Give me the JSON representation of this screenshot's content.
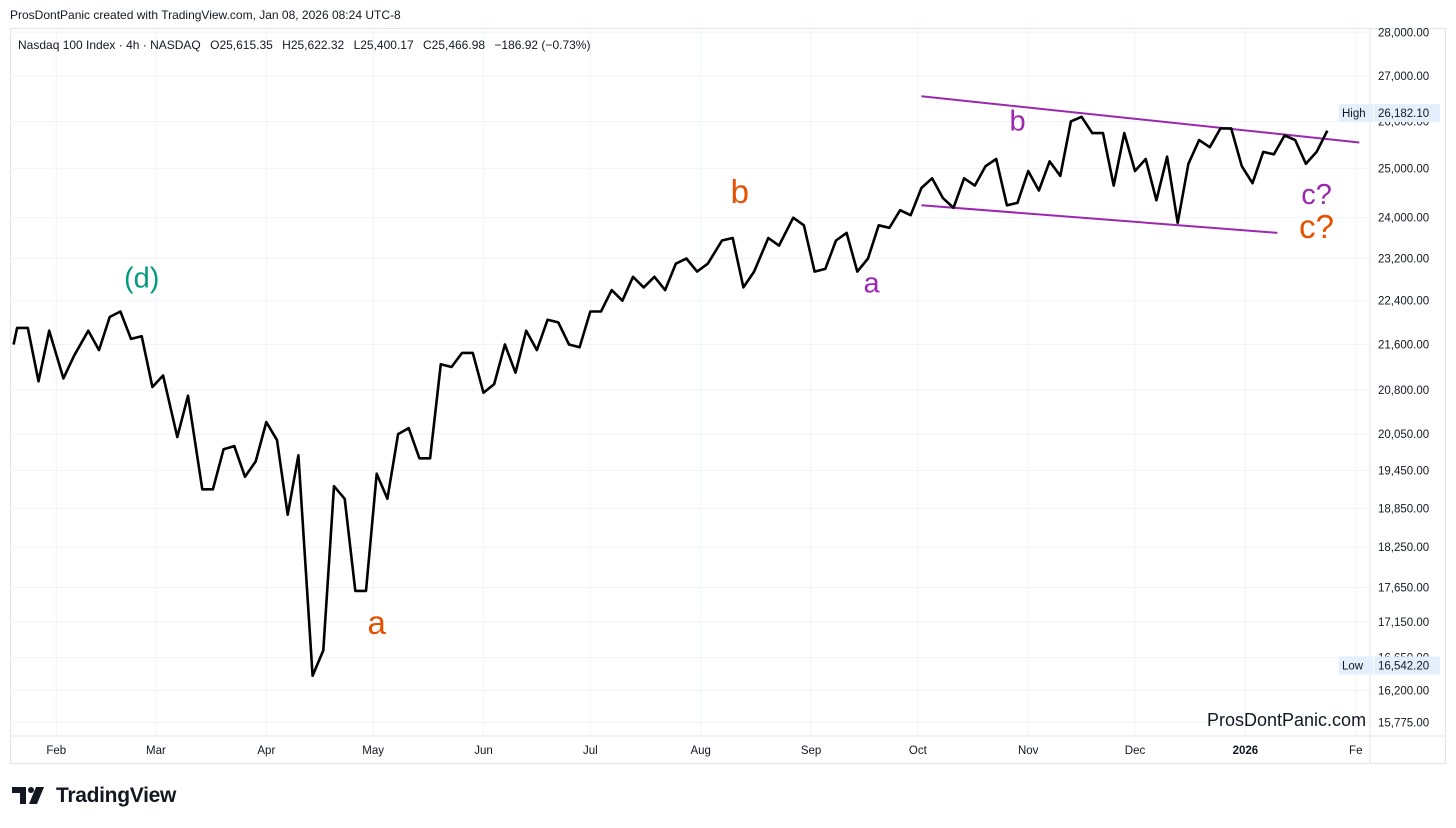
{
  "header": {
    "caption": "ProsDontPanic created with TradingView.com, Jan 08, 2026 08:24 UTC-8"
  },
  "legend": {
    "symbol": "Nasdaq 100 Index · 4h · NASDAQ",
    "open": "O25,615.35",
    "high": "H25,622.32",
    "low": "L25,400.17",
    "close": "C25,466.98",
    "change": "−186.92 (−0.73%)"
  },
  "watermark": "ProsDontPanic.com",
  "footer": {
    "brand": "TradingView",
    "logo_icon": "tradingview-logo-icon"
  },
  "colors": {
    "price_line": "#000000",
    "purple": "#9c27b0",
    "orange": "#e65100",
    "teal": "#089981",
    "grid": "#f0f3fa",
    "marker_bg": "#e3effd"
  },
  "chart_data": {
    "type": "line",
    "title": "Nasdaq 100 Index · 4h · NASDAQ",
    "xlabel": "",
    "ylabel": "",
    "y_scale": "log",
    "ylim": [
      15600,
      28100
    ],
    "x_ticks": [
      "Feb",
      "Mar",
      "Apr",
      "May",
      "Jun",
      "Jul",
      "Aug",
      "Sep",
      "Oct",
      "Nov",
      "Dec",
      "2026",
      "Fe"
    ],
    "y_ticks": [
      28000,
      27000,
      26000,
      25000,
      24000,
      23200,
      22400,
      21600,
      20800,
      20050,
      19450,
      18850,
      18250,
      17650,
      17150,
      16650,
      16200,
      15775
    ],
    "y_tick_labels": [
      "28,000.00",
      "27,000.00",
      "26,000.00",
      "25,000.00",
      "24,000.00",
      "23,200.00",
      "22,400.00",
      "21,600.00",
      "20,800.00",
      "20,050.00",
      "19,450.00",
      "18,850.00",
      "18,250.00",
      "17,650.00",
      "17,150.00",
      "16,650.00",
      "16,200.00",
      "15,775.00"
    ],
    "x_axis_start": "2025-01-19",
    "x_axis_end": "2026-02-05",
    "series": [
      {
        "values": [
          [
            "2025-01-20",
            21600
          ],
          [
            "2025-01-21",
            21900
          ],
          [
            "2025-01-24",
            21900
          ],
          [
            "2025-01-27",
            20950
          ],
          [
            "2025-01-30",
            21850
          ],
          [
            "2025-02-03",
            21000
          ],
          [
            "2025-02-06",
            21400
          ],
          [
            "2025-02-10",
            21850
          ],
          [
            "2025-02-13",
            21500
          ],
          [
            "2025-02-16",
            22100
          ],
          [
            "2025-02-19",
            22200
          ],
          [
            "2025-02-22",
            21700
          ],
          [
            "2025-02-25",
            21750
          ],
          [
            "2025-02-28",
            20850
          ],
          [
            "2025-03-03",
            21050
          ],
          [
            "2025-03-07",
            20000
          ],
          [
            "2025-03-10",
            20700
          ],
          [
            "2025-03-14",
            19150
          ],
          [
            "2025-03-17",
            19150
          ],
          [
            "2025-03-20",
            19800
          ],
          [
            "2025-03-23",
            19850
          ],
          [
            "2025-03-26",
            19350
          ],
          [
            "2025-03-29",
            19600
          ],
          [
            "2025-04-01",
            20250
          ],
          [
            "2025-04-04",
            19950
          ],
          [
            "2025-04-07",
            18750
          ],
          [
            "2025-04-10",
            19700
          ],
          [
            "2025-04-14",
            16400
          ],
          [
            "2025-04-17",
            16750
          ],
          [
            "2025-04-20",
            19200
          ],
          [
            "2025-04-23",
            19000
          ],
          [
            "2025-04-26",
            17600
          ],
          [
            "2025-04-29",
            17600
          ],
          [
            "2025-05-02",
            19400
          ],
          [
            "2025-05-05",
            19000
          ],
          [
            "2025-05-08",
            20050
          ],
          [
            "2025-05-11",
            20150
          ],
          [
            "2025-05-14",
            19650
          ],
          [
            "2025-05-17",
            19650
          ],
          [
            "2025-05-20",
            21250
          ],
          [
            "2025-05-23",
            21200
          ],
          [
            "2025-05-26",
            21450
          ],
          [
            "2025-05-29",
            21450
          ],
          [
            "2025-06-01",
            20750
          ],
          [
            "2025-06-04",
            20900
          ],
          [
            "2025-06-07",
            21600
          ],
          [
            "2025-06-10",
            21100
          ],
          [
            "2025-06-13",
            21850
          ],
          [
            "2025-06-16",
            21500
          ],
          [
            "2025-06-19",
            22050
          ],
          [
            "2025-06-22",
            22000
          ],
          [
            "2025-06-25",
            21600
          ],
          [
            "2025-06-28",
            21550
          ],
          [
            "2025-07-01",
            22200
          ],
          [
            "2025-07-04",
            22200
          ],
          [
            "2025-07-07",
            22600
          ],
          [
            "2025-07-10",
            22400
          ],
          [
            "2025-07-13",
            22850
          ],
          [
            "2025-07-16",
            22650
          ],
          [
            "2025-07-19",
            22850
          ],
          [
            "2025-07-22",
            22600
          ],
          [
            "2025-07-25",
            23100
          ],
          [
            "2025-07-28",
            23200
          ],
          [
            "2025-07-31",
            22950
          ],
          [
            "2025-08-03",
            23100
          ],
          [
            "2025-08-07",
            23550
          ],
          [
            "2025-08-10",
            23600
          ],
          [
            "2025-08-13",
            22650
          ],
          [
            "2025-08-16",
            22950
          ],
          [
            "2025-08-20",
            23600
          ],
          [
            "2025-08-23",
            23450
          ],
          [
            "2025-08-27",
            24000
          ],
          [
            "2025-08-30",
            23850
          ],
          [
            "2025-09-02",
            22950
          ],
          [
            "2025-09-05",
            23000
          ],
          [
            "2025-09-08",
            23550
          ],
          [
            "2025-09-11",
            23700
          ],
          [
            "2025-09-14",
            22950
          ],
          [
            "2025-09-17",
            23200
          ],
          [
            "2025-09-20",
            23850
          ],
          [
            "2025-09-23",
            23800
          ],
          [
            "2025-09-26",
            24150
          ],
          [
            "2025-09-29",
            24050
          ],
          [
            "2025-10-02",
            24600
          ],
          [
            "2025-10-05",
            24800
          ],
          [
            "2025-10-08",
            24400
          ],
          [
            "2025-10-11",
            24200
          ],
          [
            "2025-10-14",
            24800
          ],
          [
            "2025-10-17",
            24650
          ],
          [
            "2025-10-20",
            25050
          ],
          [
            "2025-10-23",
            25200
          ],
          [
            "2025-10-26",
            24250
          ],
          [
            "2025-10-29",
            24300
          ],
          [
            "2025-11-01",
            24950
          ],
          [
            "2025-11-04",
            24550
          ],
          [
            "2025-11-07",
            25150
          ],
          [
            "2025-11-10",
            24850
          ],
          [
            "2025-11-13",
            26000
          ],
          [
            "2025-11-16",
            26100
          ],
          [
            "2025-11-19",
            25750
          ],
          [
            "2025-11-22",
            25750
          ],
          [
            "2025-11-25",
            24650
          ],
          [
            "2025-11-28",
            25750
          ],
          [
            "2025-12-01",
            24950
          ],
          [
            "2025-12-04",
            25200
          ],
          [
            "2025-12-07",
            24350
          ],
          [
            "2025-12-10",
            25250
          ],
          [
            "2025-12-13",
            23900
          ],
          [
            "2025-12-16",
            25100
          ],
          [
            "2025-12-19",
            25600
          ],
          [
            "2025-12-22",
            25450
          ],
          [
            "2025-12-25",
            25850
          ],
          [
            "2025-12-28",
            25850
          ],
          [
            "2025-12-31",
            25050
          ],
          [
            "2026-01-03",
            24700
          ],
          [
            "2026-01-06",
            25350
          ],
          [
            "2026-01-09",
            25300
          ],
          [
            "2026-01-12",
            25700
          ],
          [
            "2026-01-15",
            25600
          ],
          [
            "2026-01-18",
            25100
          ],
          [
            "2026-01-21",
            25350
          ],
          [
            "2026-01-24",
            25800
          ]
        ]
      }
    ],
    "trendlines": [
      {
        "color": "purple",
        "from": [
          "2025-10-02",
          26550
        ],
        "to": [
          "2026-02-02",
          25550
        ]
      },
      {
        "color": "purple",
        "from": [
          "2025-10-02",
          24250
        ],
        "to": [
          "2026-01-10",
          23700
        ]
      }
    ],
    "annotations": [
      {
        "text": "(d)",
        "color": "teal",
        "at": [
          "2025-02-25",
          22650
        ]
      },
      {
        "text": "a",
        "color": "orange",
        "at": [
          "2025-05-02",
          16980
        ]
      },
      {
        "text": "b",
        "color": "orange",
        "at": [
          "2025-08-12",
          24300
        ]
      },
      {
        "text": "a",
        "color": "purple",
        "at": [
          "2025-09-18",
          22550
        ]
      },
      {
        "text": "b",
        "color": "purple",
        "at": [
          "2025-10-29",
          25800
        ]
      },
      {
        "text": "c?",
        "color": "purple",
        "at": [
          "2026-01-21",
          24280
        ]
      },
      {
        "text": "c?",
        "color": "orange",
        "at": [
          "2026-01-21",
          23600
        ]
      }
    ],
    "price_markers": [
      {
        "label": "High",
        "value_label": "26,182.10",
        "value": 26182.1
      },
      {
        "label": "Low",
        "value_label": "16,542.20",
        "value": 16542.2
      }
    ],
    "grid": true,
    "legend_position": "none"
  }
}
